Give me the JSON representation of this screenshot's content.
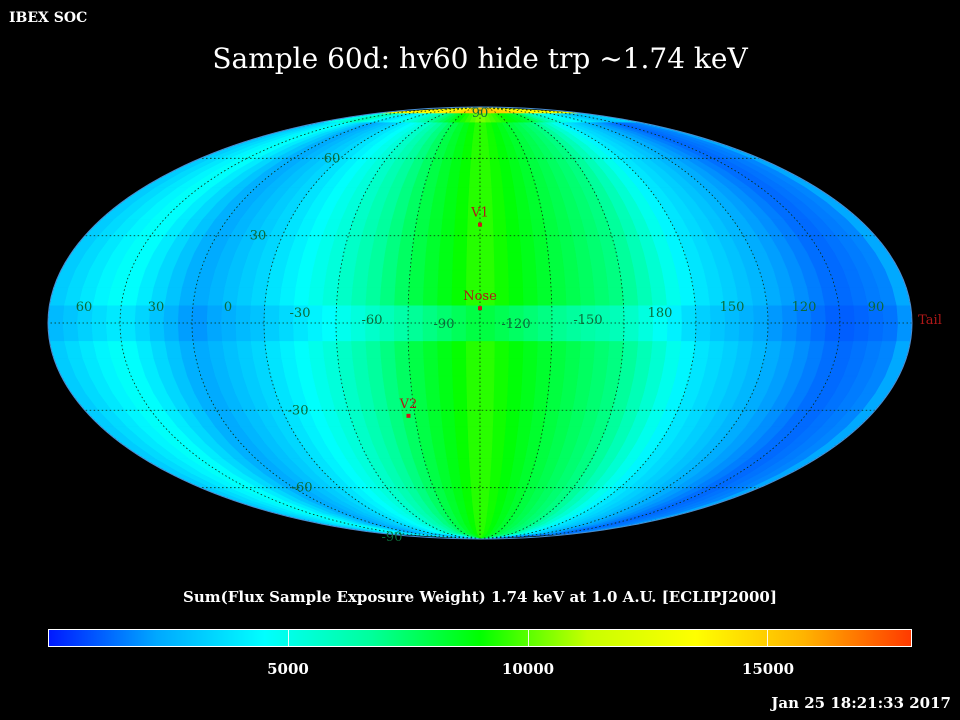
{
  "header": {
    "corner_label": "IBEX SOC",
    "title": "Sample 60d: hv60 hide trp ~1.74 keV",
    "timestamp": "Jan 25 18:21:33 2017"
  },
  "colorbar": {
    "title": "Sum(Flux Sample Exposure Weight)  1.74 keV at 1.0 A.U. [ECLIPJ2000]",
    "range": [
      0,
      18000
    ],
    "ticks": [
      {
        "value": 5000,
        "label": "5000"
      },
      {
        "value": 10000,
        "label": "10000"
      },
      {
        "value": 15000,
        "label": "15000"
      }
    ],
    "stops": [
      "#0019ff",
      "#00a8ff",
      "#00ffff",
      "#00ff9a",
      "#00ff00",
      "#c8ff00",
      "#ffff00",
      "#ffb400",
      "#ff3a00"
    ]
  },
  "chart_data": {
    "type": "heatmap",
    "projection": "mollweide",
    "frame": "ECLIPJ2000",
    "center_longitude": 255,
    "latitude_labels": [
      {
        "lat": 90,
        "label": "90"
      },
      {
        "lat": 60,
        "label": "60"
      },
      {
        "lat": 30,
        "label": "30"
      },
      {
        "lat": 0,
        "label": "0"
      },
      {
        "lat": -30,
        "label": "-30"
      },
      {
        "lat": -60,
        "label": "-60"
      },
      {
        "lat": -90,
        "label": "-90"
      }
    ],
    "longitude_labels": [
      {
        "lon": 60,
        "label": "60"
      },
      {
        "lon": 30,
        "label": "30"
      },
      {
        "lon": 0,
        "label": "0"
      },
      {
        "lon": -30,
        "label": "-30"
      },
      {
        "lon": -60,
        "label": "-60"
      },
      {
        "lon": -90,
        "label": "-90"
      },
      {
        "lon": -120,
        "label": "-120"
      },
      {
        "lon": -150,
        "label": "-150"
      },
      {
        "lon": 180,
        "label": "180"
      },
      {
        "lon": 150,
        "label": "150"
      },
      {
        "lon": 120,
        "label": "120"
      },
      {
        "lon": 90,
        "label": "90"
      }
    ],
    "markers": [
      {
        "name": "V1",
        "label": "V1",
        "lon": 255,
        "lat": 34
      },
      {
        "name": "Nose",
        "label": "Nose",
        "lon": 255,
        "lat": 5
      },
      {
        "name": "V2",
        "label": "V2",
        "lon": 288,
        "lat": -32
      },
      {
        "name": "Tail",
        "label": "Tail",
        "lon": 75,
        "lat": -5
      }
    ],
    "flux_longitude_profile": [
      {
        "lon": 75,
        "value": 3000
      },
      {
        "lon": 45,
        "value": 4800
      },
      {
        "lon": 15,
        "value": 2200
      },
      {
        "lon": -15,
        "value": 3600
      },
      {
        "lon": -45,
        "value": 5500
      },
      {
        "lon": -75,
        "value": 7800
      },
      {
        "lon": -105,
        "value": 9600
      },
      {
        "lon": -135,
        "value": 8200
      },
      {
        "lon": -165,
        "value": 7000
      },
      {
        "lon": 165,
        "value": 4000
      },
      {
        "lon": 135,
        "value": 2500
      },
      {
        "lon": 105,
        "value": 1200
      },
      {
        "lon": 80,
        "value": 1800
      }
    ],
    "polar_maximum": {
      "lat": 90,
      "value": 18000
    }
  }
}
